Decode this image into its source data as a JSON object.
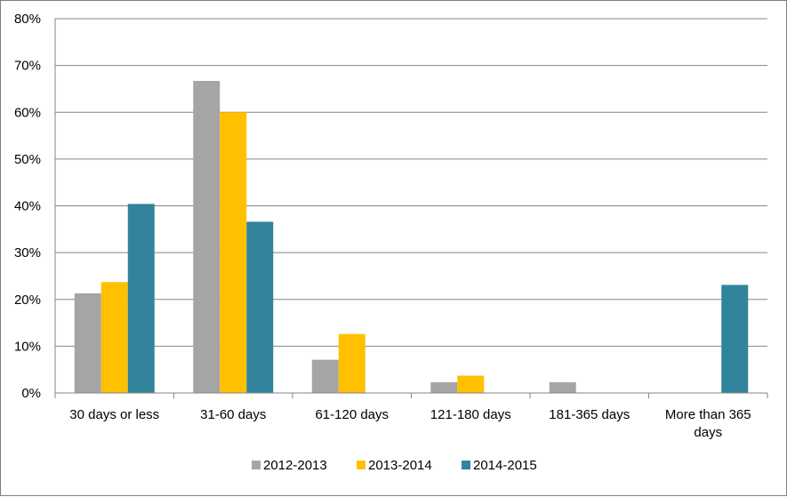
{
  "chart_data": {
    "type": "bar",
    "title": "",
    "xlabel": "",
    "ylabel": "",
    "categories": [
      [
        "30 days or less"
      ],
      [
        "31-60 days"
      ],
      [
        "61-120 days"
      ],
      [
        "121-180 days"
      ],
      [
        "181-365 days"
      ],
      [
        "More than 365",
        "days"
      ]
    ],
    "series": [
      {
        "name": "2012-2013",
        "color": "#a5a5a5",
        "values": [
          21.3,
          66.7,
          7.1,
          2.3,
          2.3,
          0
        ]
      },
      {
        "name": "2013-2014",
        "color": "#ffc000",
        "values": [
          23.7,
          60.0,
          12.6,
          3.7,
          0,
          0
        ]
      },
      {
        "name": "2014-2015",
        "color": "#31849b",
        "values": [
          40.4,
          36.6,
          0,
          0,
          0,
          23.1
        ]
      }
    ],
    "ylim": [
      0,
      80
    ],
    "yticks": [
      "0%",
      "10%",
      "20%",
      "30%",
      "40%",
      "50%",
      "60%",
      "70%",
      "80%"
    ],
    "grid": true,
    "legend_position": "bottom"
  }
}
